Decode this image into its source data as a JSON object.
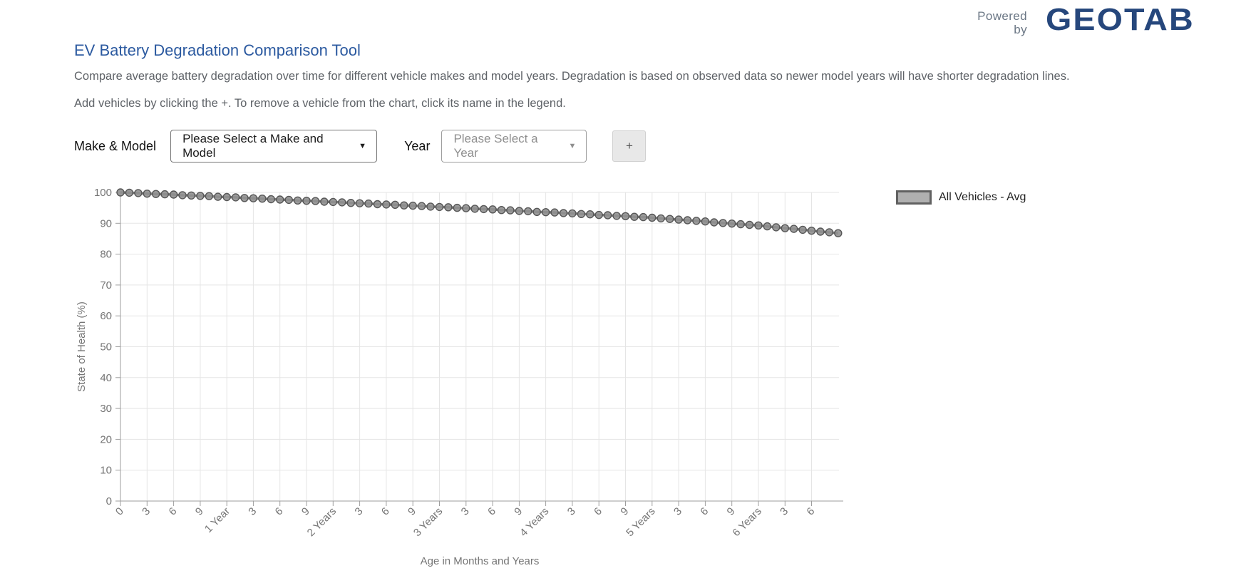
{
  "header": {
    "powered_by_line1": "Powered",
    "powered_by_line2": "by",
    "logo_text": "GEOTAB"
  },
  "page": {
    "title": "EV Battery Degradation Comparison Tool",
    "description": "Compare average battery degradation over time for different vehicle makes and model years. Degradation is based on observed data so newer model years will have shorter degradation lines.",
    "instructions": "Add vehicles by clicking the +. To remove a vehicle from the chart, click its name in the legend."
  },
  "controls": {
    "make_model_label": "Make & Model",
    "make_model_value": "Please Select a Make and Model",
    "year_label": "Year",
    "year_value": "Please Select a Year",
    "add_button_label": "+",
    "dropdown_arrow": "▼"
  },
  "legend": {
    "items": [
      {
        "label": "All Vehicles - Avg",
        "swatch_fill": "#b0b0b0",
        "swatch_border": "#616161"
      }
    ]
  },
  "colors": {
    "title_blue": "#2c5aa0",
    "logo_navy": "#26477c",
    "powered_by_gray": "#6b7785",
    "body_text": "#5f6368",
    "grid": "#e5e5e5",
    "axis": "#9e9e9e",
    "tick_text": "#757575",
    "series_line": "#6f6f6f",
    "marker_fill": "#919191",
    "marker_stroke": "#575757"
  },
  "chart_data": {
    "type": "line",
    "title": "",
    "xlabel": "Age in Months and Years",
    "ylabel": "State of Health (%)",
    "ylim": [
      0,
      100
    ],
    "grid": true,
    "legend_position": "right",
    "x_unit": "months",
    "y_ticks": [
      0,
      10,
      20,
      30,
      40,
      50,
      60,
      70,
      80,
      90,
      100
    ],
    "x_tick_months": [
      0,
      3,
      6,
      9,
      12,
      15,
      18,
      21,
      24,
      27,
      30,
      33,
      36,
      39,
      42,
      45,
      48,
      51,
      54,
      57,
      60,
      63,
      66,
      69,
      72,
      75,
      78
    ],
    "x_tick_labels": [
      "0",
      "3",
      "6",
      "9",
      "1 Year",
      "3",
      "6",
      "9",
      "2 Years",
      "3",
      "6",
      "9",
      "3 Years",
      "3",
      "6",
      "9",
      "4 Years",
      "3",
      "6",
      "9",
      "5 Years",
      "3",
      "6",
      "9",
      "6 Years",
      "3",
      "6"
    ],
    "x": [
      0,
      1,
      2,
      3,
      4,
      5,
      6,
      7,
      8,
      9,
      10,
      11,
      12,
      13,
      14,
      15,
      16,
      17,
      18,
      19,
      20,
      21,
      22,
      23,
      24,
      25,
      26,
      27,
      28,
      29,
      30,
      31,
      32,
      33,
      34,
      35,
      36,
      37,
      38,
      39,
      40,
      41,
      42,
      43,
      44,
      45,
      46,
      47,
      48,
      49,
      50,
      51,
      52,
      53,
      54,
      55,
      56,
      57,
      58,
      59,
      60,
      61,
      62,
      63,
      64,
      65,
      66,
      67,
      68,
      69,
      70,
      71,
      72,
      73,
      74,
      75,
      76,
      77,
      78,
      79,
      80,
      81
    ],
    "series": [
      {
        "name": "All Vehicles - Avg",
        "color": "#757575",
        "values": [
          100,
          99.9,
          99.8,
          99.6,
          99.5,
          99.4,
          99.3,
          99.1,
          99,
          98.9,
          98.8,
          98.6,
          98.5,
          98.4,
          98.2,
          98.1,
          98,
          97.8,
          97.7,
          97.6,
          97.4,
          97.3,
          97.2,
          97,
          96.9,
          96.8,
          96.6,
          96.5,
          96.4,
          96.2,
          96.1,
          96,
          95.8,
          95.7,
          95.6,
          95.4,
          95.3,
          95.2,
          95,
          94.9,
          94.7,
          94.6,
          94.5,
          94.3,
          94.2,
          94,
          93.9,
          93.7,
          93.6,
          93.5,
          93.3,
          93.2,
          93,
          92.9,
          92.7,
          92.6,
          92.4,
          92.3,
          92.1,
          92,
          91.8,
          91.6,
          91.4,
          91.2,
          91,
          90.8,
          90.6,
          90.3,
          90.1,
          89.9,
          89.7,
          89.5,
          89.3,
          89,
          88.7,
          88.4,
          88.2,
          87.9,
          87.6,
          87.3,
          87.1,
          86.8
        ]
      }
    ]
  }
}
